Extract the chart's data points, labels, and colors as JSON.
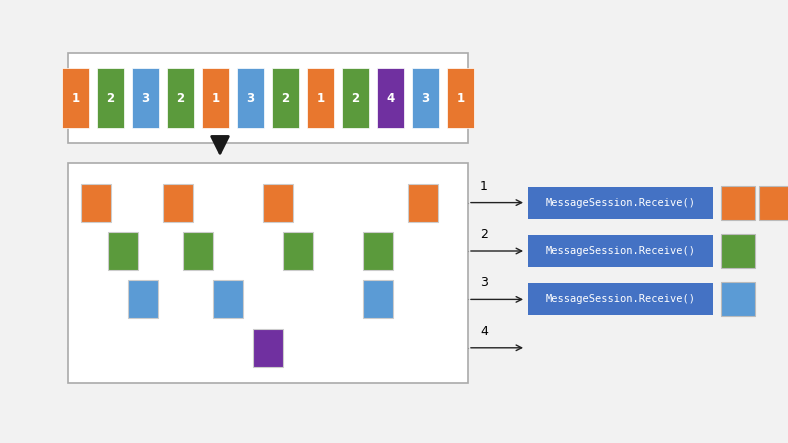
{
  "bg_color": "#f2f2f2",
  "top_sequence": [
    {
      "label": "1",
      "color": "#E8772E"
    },
    {
      "label": "2",
      "color": "#5B9A3C"
    },
    {
      "label": "3",
      "color": "#5B9BD5"
    },
    {
      "label": "2",
      "color": "#5B9A3C"
    },
    {
      "label": "1",
      "color": "#E8772E"
    },
    {
      "label": "3",
      "color": "#5B9BD5"
    },
    {
      "label": "2",
      "color": "#5B9A3C"
    },
    {
      "label": "1",
      "color": "#E8772E"
    },
    {
      "label": "2",
      "color": "#5B9A3C"
    },
    {
      "label": "4",
      "color": "#7030A0"
    },
    {
      "label": "3",
      "color": "#5B9BD5"
    },
    {
      "label": "1",
      "color": "#E8772E"
    }
  ],
  "orange_color": "#E8772E",
  "green_color": "#5B9A3C",
  "blue_color": "#5B9BD5",
  "purple_color": "#7030A0",
  "msg_box_color": "#4472C4",
  "msg_text": "MessageSession.Receive()",
  "msg_text_color": "#ffffff",
  "box_edge_color": "#aaaaaa",
  "line_color": "#222222"
}
